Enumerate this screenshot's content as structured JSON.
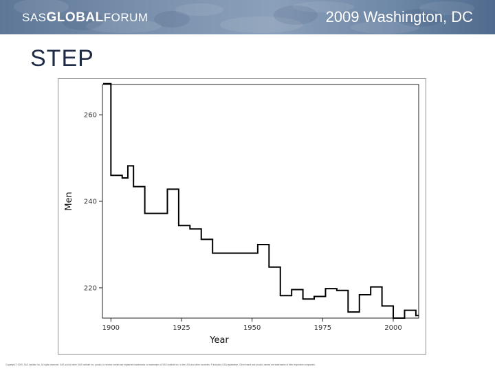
{
  "banner": {
    "logo_sas": "SAS",
    "logo_global": "GLOBAL",
    "logo_forum": "FORUM",
    "event": "2009 Washington, DC"
  },
  "slide": {
    "title": "STEP"
  },
  "footer": {
    "copyright": "Copyright © 2009, SAS Institute Inc. All rights reserved. SAS and all other SAS Institute Inc. product or service names are registered trademarks or trademarks of SAS Institute Inc. in the USA and other countries. ® indicates USA registration. Other brand and product names are trademarks of their respective companies."
  },
  "colors": {
    "banner": "#6f87a6",
    "line": "#000000",
    "title": "#1f2a44"
  },
  "chart_data": {
    "type": "line",
    "interpolation": "step",
    "title": "",
    "xlabel": "Year",
    "ylabel": "Men",
    "xlim": [
      1897,
      2009
    ],
    "ylim": [
      213,
      267
    ],
    "x_ticks": [
      1900,
      1925,
      1950,
      1975,
      2000
    ],
    "y_ticks": [
      220,
      240,
      260
    ],
    "x_tick_labels": [
      "1900",
      "1925",
      "1950",
      "1975",
      "2000"
    ],
    "y_tick_labels": [
      "220",
      "240",
      "260"
    ],
    "grid": false,
    "series": [
      {
        "name": "Men",
        "x": [
          1896,
          1900,
          1904,
          1906,
          1908,
          1912,
          1920,
          1924,
          1928,
          1932,
          1936,
          1948,
          1952,
          1956,
          1960,
          1964,
          1968,
          1972,
          1976,
          1980,
          1984,
          1988,
          1992,
          1996,
          2000,
          2004,
          2008
        ],
        "y": [
          267.2,
          246.0,
          245.4,
          248.2,
          243.4,
          237.2,
          242.8,
          234.4,
          233.6,
          231.2,
          228.0,
          228.0,
          230.0,
          224.8,
          218.2,
          219.6,
          217.4,
          218.0,
          219.8,
          219.4,
          214.4,
          218.4,
          220.2,
          215.8,
          213.0,
          214.8,
          213.6
        ]
      }
    ]
  }
}
